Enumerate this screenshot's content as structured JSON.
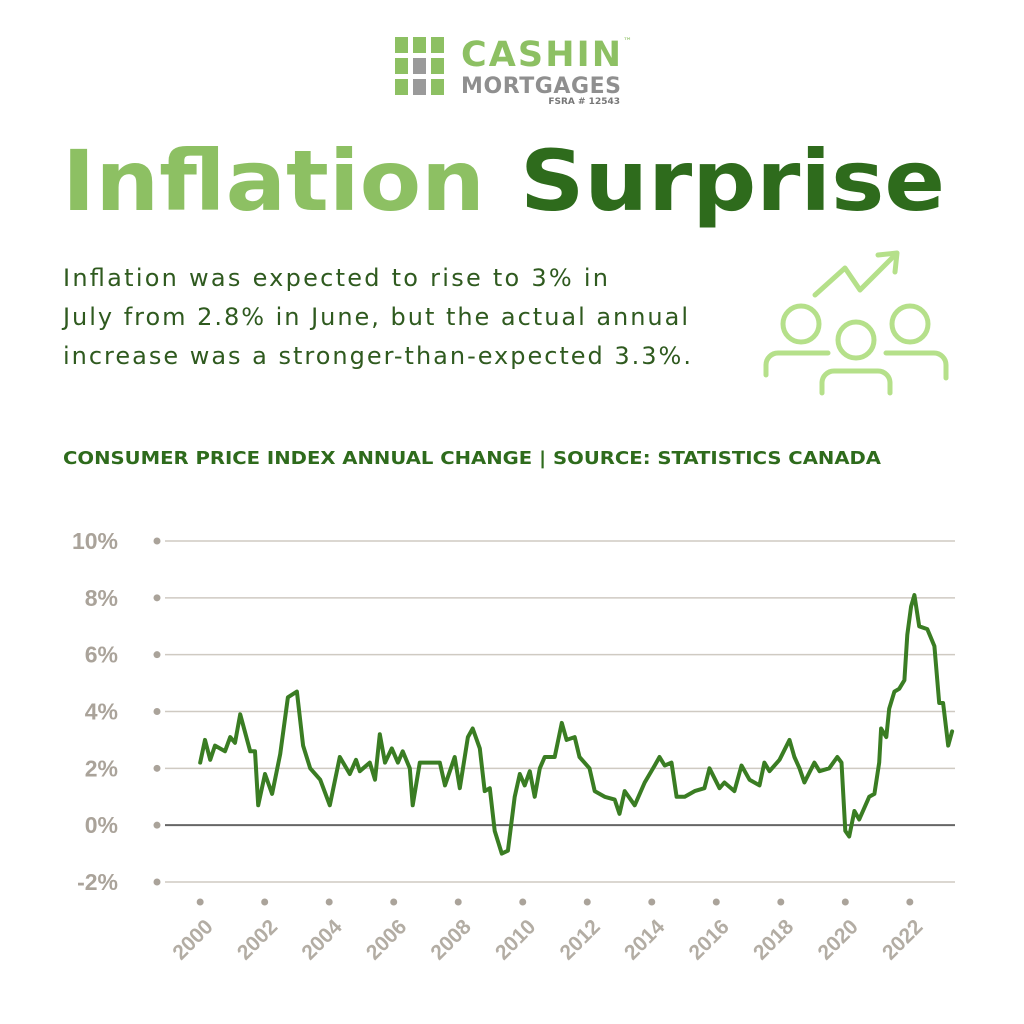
{
  "logo": {
    "name": "CASHIN",
    "trademark": "™",
    "subname": "MORTGAGES",
    "license": "FSRA # 12543"
  },
  "header": {
    "title": [
      "Inflation",
      "Surprise"
    ],
    "text": [
      "Inflation was expected to rise to 3% in",
      "July from 2.8% in June, but the actual annual",
      "increase was a stronger-than-expected 3.3%."
    ]
  },
  "chart_data": {
    "type": "line",
    "title": "CONSUMER PRICE INDEX ANNUAL CHANGE | SOURCE: STATISTICS CANADA",
    "color": "#3a7d23",
    "grid": true,
    "xlim": [
      1998.6,
      2023.4
    ],
    "ylim": [
      -2,
      10
    ],
    "xticks": [
      2000,
      2002,
      2004,
      2006,
      2008,
      2010,
      2012,
      2014,
      2016,
      2018,
      2020,
      2022
    ],
    "yticks": [
      {
        "value": -2,
        "label": "-2%"
      },
      {
        "value": 0,
        "label": "0%"
      },
      {
        "value": 2,
        "label": "2%"
      },
      {
        "value": 4,
        "label": "4%"
      },
      {
        "value": 6,
        "label": "6%"
      },
      {
        "value": 8,
        "label": "8%"
      },
      {
        "value": 10,
        "label": "10%"
      }
    ],
    "x": [
      2000.0,
      2000.15,
      2000.31,
      2000.46,
      2000.77,
      2000.93,
      2001.08,
      2001.24,
      2001.55,
      2001.7,
      2001.8,
      2002.01,
      2002.23,
      2002.48,
      2002.72,
      2003.0,
      2003.19,
      2003.41,
      2003.72,
      2004.02,
      2004.33,
      2004.64,
      2004.83,
      2004.95,
      2005.26,
      2005.42,
      2005.57,
      2005.73,
      2005.94,
      2006.13,
      2006.28,
      2006.5,
      2006.59,
      2006.81,
      2007.43,
      2007.59,
      2007.89,
      2008.05,
      2008.3,
      2008.45,
      2008.67,
      2008.82,
      2008.98,
      2009.13,
      2009.35,
      2009.54,
      2009.75,
      2009.91,
      2010.06,
      2010.22,
      2010.37,
      2010.53,
      2010.68,
      2010.99,
      2011.21,
      2011.36,
      2011.61,
      2011.76,
      2012.07,
      2012.23,
      2012.54,
      2012.85,
      2013.0,
      2013.16,
      2013.47,
      2013.78,
      2014.09,
      2014.24,
      2014.4,
      2014.61,
      2014.77,
      2015.02,
      2015.33,
      2015.63,
      2015.79,
      2016.1,
      2016.25,
      2016.56,
      2016.78,
      2017.03,
      2017.34,
      2017.49,
      2017.65,
      2017.96,
      2018.27,
      2018.42,
      2018.58,
      2018.73,
      2019.04,
      2019.2,
      2019.5,
      2019.75,
      2019.88,
      2020.0,
      2020.12,
      2020.28,
      2020.43,
      2020.74,
      2020.9,
      2021.05,
      2021.11,
      2021.27,
      2021.36,
      2021.52,
      2021.67,
      2021.83,
      2021.92,
      2022.04,
      2022.14,
      2022.29,
      2022.54,
      2022.76,
      2022.91,
      2023.03,
      2023.19,
      2023.31
    ],
    "values": [
      2.2,
      3.0,
      2.3,
      2.8,
      2.6,
      3.1,
      2.9,
      3.9,
      2.6,
      2.6,
      0.7,
      1.8,
      1.1,
      2.5,
      4.5,
      4.7,
      2.8,
      2.0,
      1.6,
      0.7,
      2.4,
      1.8,
      2.3,
      1.9,
      2.2,
      1.6,
      3.2,
      2.2,
      2.7,
      2.2,
      2.6,
      2.0,
      0.7,
      2.2,
      2.2,
      1.4,
      2.4,
      1.3,
      3.1,
      3.4,
      2.7,
      1.2,
      1.3,
      -0.2,
      -1.0,
      -0.9,
      1.0,
      1.8,
      1.4,
      1.9,
      1.0,
      2.0,
      2.4,
      2.4,
      3.6,
      3.0,
      3.1,
      2.4,
      2.0,
      1.2,
      1.0,
      0.9,
      0.4,
      1.2,
      0.7,
      1.5,
      2.1,
      2.4,
      2.1,
      2.2,
      1.0,
      1.0,
      1.2,
      1.3,
      2.0,
      1.3,
      1.5,
      1.2,
      2.1,
      1.6,
      1.4,
      2.2,
      1.9,
      2.3,
      3.0,
      2.4,
      2.0,
      1.5,
      2.2,
      1.9,
      2.0,
      2.4,
      2.2,
      -0.2,
      -0.4,
      0.5,
      0.2,
      1.0,
      1.1,
      2.2,
      3.4,
      3.1,
      4.1,
      4.7,
      4.8,
      5.1,
      6.7,
      7.7,
      8.1,
      7.0,
      6.9,
      6.3,
      4.3,
      4.3,
      2.8,
      3.3
    ]
  }
}
